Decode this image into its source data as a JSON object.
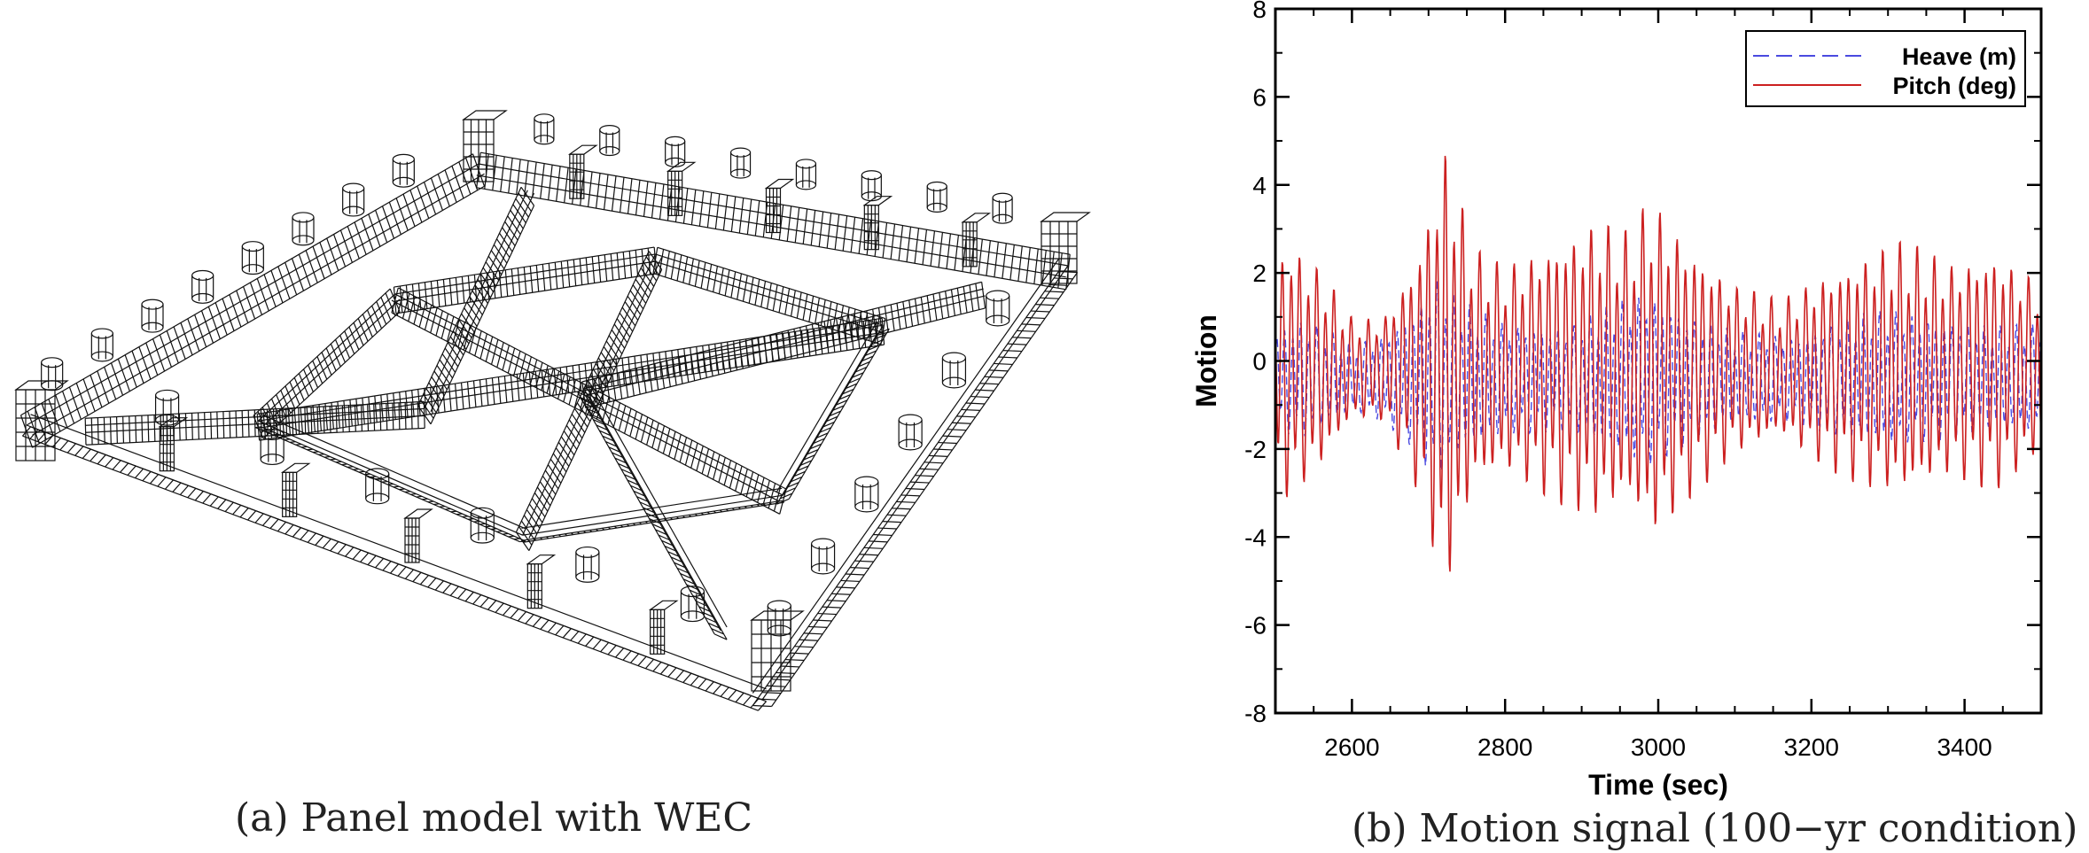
{
  "captions": {
    "a": "(a) Panel model with WEC",
    "b": "(b) Motion signal (100−yr condition)"
  },
  "chart_data": {
    "type": "line",
    "xlabel": "Time (sec)",
    "ylabel": "Motion",
    "xlim": [
      2500,
      3500
    ],
    "ylim": [
      -8,
      8
    ],
    "xticks": [
      2600,
      2800,
      3000,
      3200,
      3400
    ],
    "yticks": [
      -8,
      -6,
      -4,
      -2,
      0,
      2,
      4,
      6,
      8
    ],
    "grid": false,
    "legend_position": "top-right",
    "series": [
      {
        "name": "Heave (m)",
        "color": "#4a4ae0",
        "dash": "dashed",
        "period_sec": 10.5,
        "envelope": [
          [
            2500,
            1.2
          ],
          [
            2540,
            1.4
          ],
          [
            2600,
            0.8
          ],
          [
            2640,
            1.0
          ],
          [
            2680,
            1.6
          ],
          [
            2710,
            2.4
          ],
          [
            2740,
            1.8
          ],
          [
            2800,
            1.3
          ],
          [
            2880,
            1.2
          ],
          [
            2960,
            1.9
          ],
          [
            2990,
            2.0
          ],
          [
            3040,
            1.5
          ],
          [
            3100,
            1.1
          ],
          [
            3180,
            1.0
          ],
          [
            3240,
            1.4
          ],
          [
            3300,
            1.6
          ],
          [
            3380,
            1.4
          ],
          [
            3440,
            1.2
          ],
          [
            3500,
            1.3
          ]
        ]
      },
      {
        "name": "Pitch (deg)",
        "color": "#cc2020",
        "dash": "solid",
        "period_sec": 11.2,
        "envelope": [
          [
            2500,
            2.8
          ],
          [
            2520,
            3.0
          ],
          [
            2560,
            2.3
          ],
          [
            2600,
            1.2
          ],
          [
            2640,
            1.2
          ],
          [
            2680,
            2.5
          ],
          [
            2710,
            4.4
          ],
          [
            2720,
            5.4
          ],
          [
            2760,
            2.8
          ],
          [
            2800,
            2.4
          ],
          [
            2860,
            3.0
          ],
          [
            2920,
            3.5
          ],
          [
            2960,
            3.2
          ],
          [
            2990,
            4.0
          ],
          [
            3040,
            3.0
          ],
          [
            3100,
            2.0
          ],
          [
            3160,
            1.6
          ],
          [
            3220,
            2.3
          ],
          [
            3280,
            2.8
          ],
          [
            3320,
            3.0
          ],
          [
            3380,
            2.5
          ],
          [
            3440,
            2.8
          ],
          [
            3500,
            2.0
          ]
        ]
      }
    ]
  },
  "model": {
    "icon": "wireframe-platform-icon"
  }
}
